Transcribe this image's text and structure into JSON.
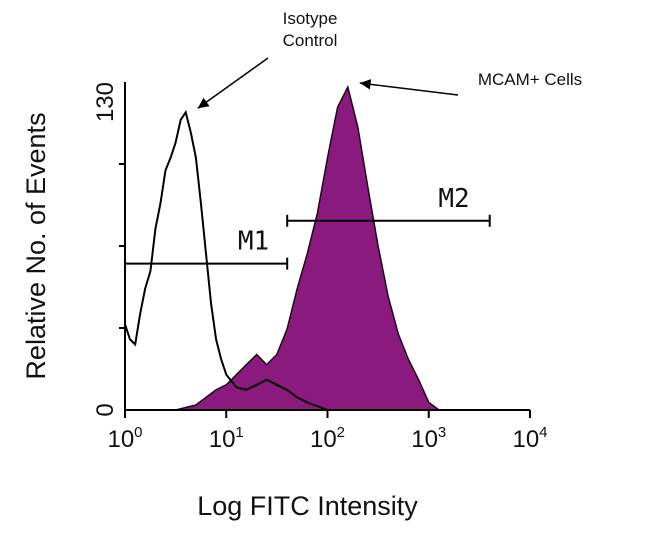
{
  "chart_data": {
    "type": "area",
    "xlabel": "Log FITC Intensity",
    "ylabel": "Relative No. of Events",
    "x_scale": "log",
    "xlim": [
      1,
      10000
    ],
    "ylim": [
      0,
      130
    ],
    "x_ticks": [
      {
        "value": 1,
        "base": "10",
        "exp": "0"
      },
      {
        "value": 10,
        "base": "10",
        "exp": "1"
      },
      {
        "value": 100,
        "base": "10",
        "exp": "2"
      },
      {
        "value": 1000,
        "base": "10",
        "exp": "3"
      },
      {
        "value": 10000,
        "base": "10",
        "exp": "4"
      }
    ],
    "y_ticks": [
      "0",
      "130"
    ],
    "series": [
      {
        "name": "Isotype Control",
        "style": "outline",
        "color": "#000000",
        "x": [
          1.0,
          1.12,
          1.26,
          1.41,
          1.58,
          1.78,
          2.0,
          2.24,
          2.51,
          2.82,
          3.16,
          3.55,
          3.98,
          4.47,
          5.01,
          5.62,
          6.31,
          7.08,
          7.94,
          8.91,
          10.0,
          12.6,
          15.8,
          20.0,
          25.1,
          31.6,
          39.8,
          50.1,
          63.1,
          100.0
        ],
        "y": [
          34,
          28,
          26,
          38,
          48,
          55,
          72,
          82,
          95,
          100,
          106,
          115,
          118,
          110,
          100,
          82,
          62,
          42,
          28,
          20,
          14,
          9,
          8,
          10,
          12,
          10,
          8,
          5,
          3,
          0
        ]
      },
      {
        "name": "MCAM+ Cells",
        "style": "filled",
        "color": "#8b1a7f",
        "x": [
          1.0,
          3.16,
          5.01,
          6.31,
          7.94,
          10.0,
          12.6,
          15.8,
          20.0,
          25.1,
          31.6,
          39.8,
          50.1,
          63.1,
          79.4,
          100.0,
          125.9,
          158.5,
          199.5,
          251.2,
          316.2,
          398.1,
          501.2,
          631.0,
          794.3,
          1000.0,
          1259.0,
          10000.0
        ],
        "y": [
          0,
          0,
          2,
          5,
          8,
          10,
          14,
          18,
          22,
          18,
          22,
          32,
          48,
          62,
          78,
          100,
          120,
          128,
          112,
          88,
          65,
          45,
          30,
          20,
          12,
          3,
          0,
          0
        ]
      }
    ],
    "markers": [
      {
        "label": "M1",
        "x_start": 1.0,
        "x_end": 40.0,
        "y": 58
      },
      {
        "label": "M2",
        "x_start": 40.0,
        "x_end": 4000.0,
        "y": 75
      }
    ],
    "annotations": [
      {
        "lines": [
          "Isotype",
          "Control"
        ],
        "target_series": "Isotype Control"
      },
      {
        "lines": [
          "MCAM+ Cells"
        ],
        "target_series": "MCAM+ Cells"
      }
    ]
  }
}
